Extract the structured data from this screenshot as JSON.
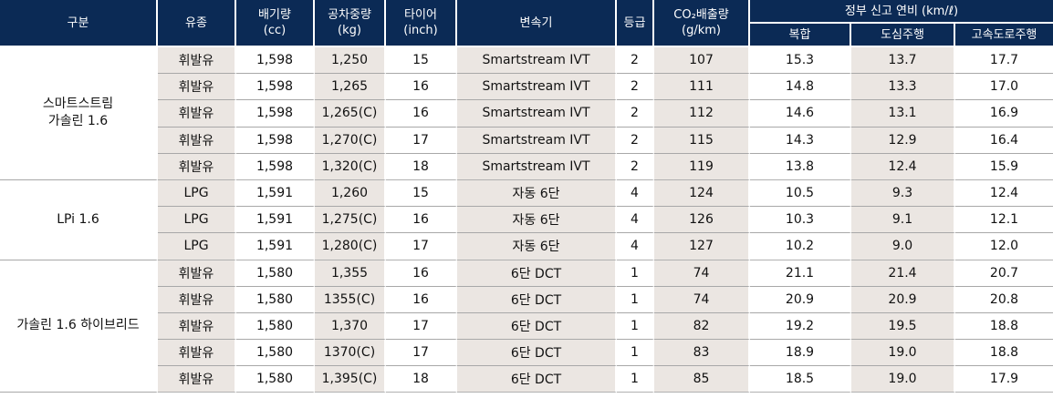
{
  "header": {
    "category": "구분",
    "fuel": "유종",
    "displacement": [
      "배기량",
      "(cc)"
    ],
    "curb_weight": [
      "공차중량",
      "(kg)"
    ],
    "tire": [
      "타이어",
      "(inch)"
    ],
    "transmission": "변속기",
    "grade": "등급",
    "co2": [
      "CO₂배출량",
      "(g/km)"
    ],
    "efficiency_group": "정부 신고 연비 (km/ℓ)",
    "combined": "복합",
    "city": "도심주행",
    "highway": "고속도로주행"
  },
  "groups": [
    {
      "name": [
        "스마트스트림",
        "가솔린 1.6"
      ],
      "rows": [
        [
          "휘발유",
          "1,598",
          "1,250",
          "15",
          "Smartstream IVT",
          "2",
          "107",
          "15.3",
          "13.7",
          "17.7"
        ],
        [
          "휘발유",
          "1,598",
          "1,265",
          "16",
          "Smartstream IVT",
          "2",
          "111",
          "14.8",
          "13.3",
          "17.0"
        ],
        [
          "휘발유",
          "1,598",
          "1,265(C)",
          "16",
          "Smartstream IVT",
          "2",
          "112",
          "14.6",
          "13.1",
          "16.9"
        ],
        [
          "휘발유",
          "1,598",
          "1,270(C)",
          "17",
          "Smartstream IVT",
          "2",
          "115",
          "14.3",
          "12.9",
          "16.4"
        ],
        [
          "휘발유",
          "1,598",
          "1,320(C)",
          "18",
          "Smartstream IVT",
          "2",
          "119",
          "13.8",
          "12.4",
          "15.9"
        ]
      ]
    },
    {
      "name": [
        "LPi 1.6"
      ],
      "rows": [
        [
          "LPG",
          "1,591",
          "1,260",
          "15",
          "자동 6단",
          "4",
          "124",
          "10.5",
          "9.3",
          "12.4"
        ],
        [
          "LPG",
          "1,591",
          "1,275(C)",
          "16",
          "자동 6단",
          "4",
          "126",
          "10.3",
          "9.1",
          "12.1"
        ],
        [
          "LPG",
          "1,591",
          "1,280(C)",
          "17",
          "자동 6단",
          "4",
          "127",
          "10.2",
          "9.0",
          "12.0"
        ]
      ]
    },
    {
      "name": [
        "가솔린 1.6 하이브리드"
      ],
      "rows": [
        [
          "휘발유",
          "1,580",
          "1,355",
          "16",
          "6단 DCT",
          "1",
          "74",
          "21.1",
          "21.4",
          "20.7"
        ],
        [
          "휘발유",
          "1,580",
          "1355(C)",
          "16",
          "6단 DCT",
          "1",
          "74",
          "20.9",
          "20.9",
          "20.8"
        ],
        [
          "휘발유",
          "1,580",
          "1,370",
          "17",
          "6단 DCT",
          "1",
          "82",
          "19.2",
          "19.5",
          "18.8"
        ],
        [
          "휘발유",
          "1,580",
          "1370(C)",
          "17",
          "6단 DCT",
          "1",
          "83",
          "18.9",
          "19.0",
          "18.8"
        ],
        [
          "휘발유",
          "1,580",
          "1,395(C)",
          "18",
          "6단 DCT",
          "1",
          "85",
          "18.5",
          "19.0",
          "17.9"
        ]
      ]
    }
  ]
}
